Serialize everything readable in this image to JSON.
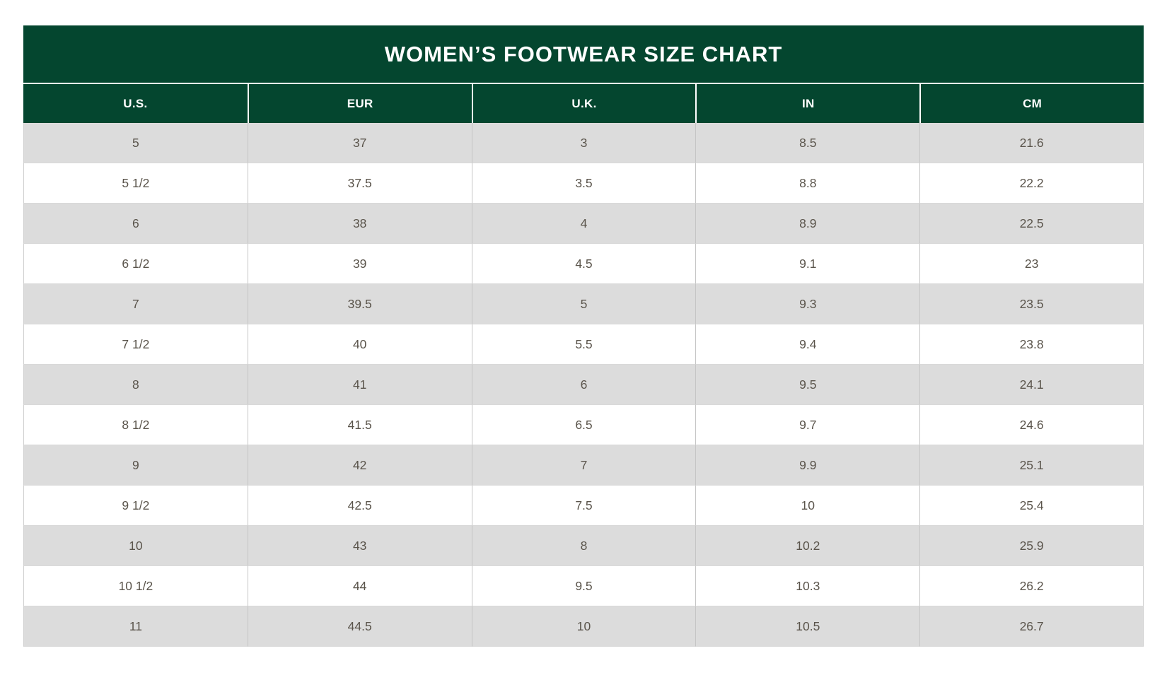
{
  "table": {
    "title": "WOMEN’S FOOTWEAR SIZE CHART",
    "columns": [
      "U.S.",
      "EUR",
      "U.K.",
      "IN",
      "CM"
    ],
    "rows": [
      [
        "5",
        "37",
        "3",
        "8.5",
        "21.6"
      ],
      [
        "5 1/2",
        "37.5",
        "3.5",
        "8.8",
        "22.2"
      ],
      [
        "6",
        "38",
        "4",
        "8.9",
        "22.5"
      ],
      [
        "6 1/2",
        "39",
        "4.5",
        "9.1",
        "23"
      ],
      [
        "7",
        "39.5",
        "5",
        "9.3",
        "23.5"
      ],
      [
        "7 1/2",
        "40",
        "5.5",
        "9.4",
        "23.8"
      ],
      [
        "8",
        "41",
        "6",
        "9.5",
        "24.1"
      ],
      [
        "8 1/2",
        "41.5",
        "6.5",
        "9.7",
        "24.6"
      ],
      [
        "9",
        "42",
        "7",
        "9.9",
        "25.1"
      ],
      [
        "9 1/2",
        "42.5",
        "7.5",
        "10",
        "25.4"
      ],
      [
        "10",
        "43",
        "8",
        "10.2",
        "25.9"
      ],
      [
        "10 1/2",
        "44",
        "9.5",
        "10.3",
        "26.2"
      ],
      [
        "11",
        "44.5",
        "10",
        "10.5",
        "26.7"
      ]
    ],
    "colors": {
      "header_green": "#04462f",
      "row_alt_gray": "#dcdcdc",
      "row_white": "#ffffff",
      "header_text": "#ffffff",
      "cell_text": "#5a544b"
    }
  }
}
